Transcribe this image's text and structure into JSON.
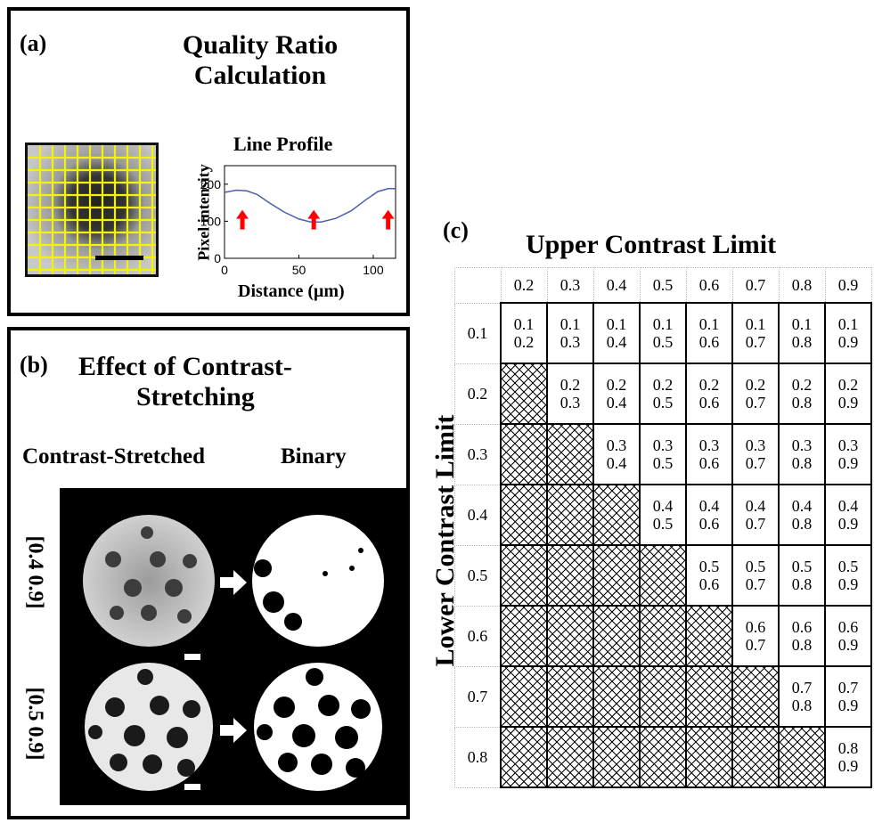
{
  "panel_a": {
    "letter": "(a)",
    "title_line1": "Quality Ratio",
    "title_line2": "Calculation",
    "chart_data": {
      "type": "line",
      "title": "Line Profile",
      "xlabel": "Distance (μm)",
      "ylabel": "Pixel intensity",
      "xlim": [
        0,
        115
      ],
      "ylim": [
        0,
        250
      ],
      "xticks": [
        "0",
        "50",
        "100"
      ],
      "yticks": [
        "0",
        "100",
        "200"
      ],
      "series": [
        {
          "x": [
            0,
            8,
            15,
            22,
            30,
            40,
            50,
            58,
            65,
            75,
            85,
            95,
            103,
            110,
            115
          ],
          "y": [
            178,
            184,
            182,
            172,
            150,
            125,
            106,
            98,
            98,
            108,
            128,
            158,
            180,
            188,
            188
          ]
        }
      ],
      "arrow_x": [
        12,
        60,
        110
      ],
      "line_color": "#4a5fb0",
      "arrow_color": "#ff0000"
    }
  },
  "panel_b": {
    "letter": "(b)",
    "title_line1": "Effect of Contrast-",
    "title_line2": "Stretching",
    "col_left": "Contrast-Stretched",
    "col_right": "Binary",
    "row1": "[0.4  0.9]",
    "row2": "[0.5  0.9]"
  },
  "panel_c": {
    "letter": "(c)",
    "upper_title": "Upper Contrast Limit",
    "lower_title": "Lower Contrast Limit",
    "upper": [
      "0.2",
      "0.3",
      "0.4",
      "0.5",
      "0.6",
      "0.7",
      "0.8",
      "0.9"
    ],
    "lower": [
      "0.1",
      "0.2",
      "0.3",
      "0.4",
      "0.5",
      "0.6",
      "0.7",
      "0.8"
    ]
  }
}
